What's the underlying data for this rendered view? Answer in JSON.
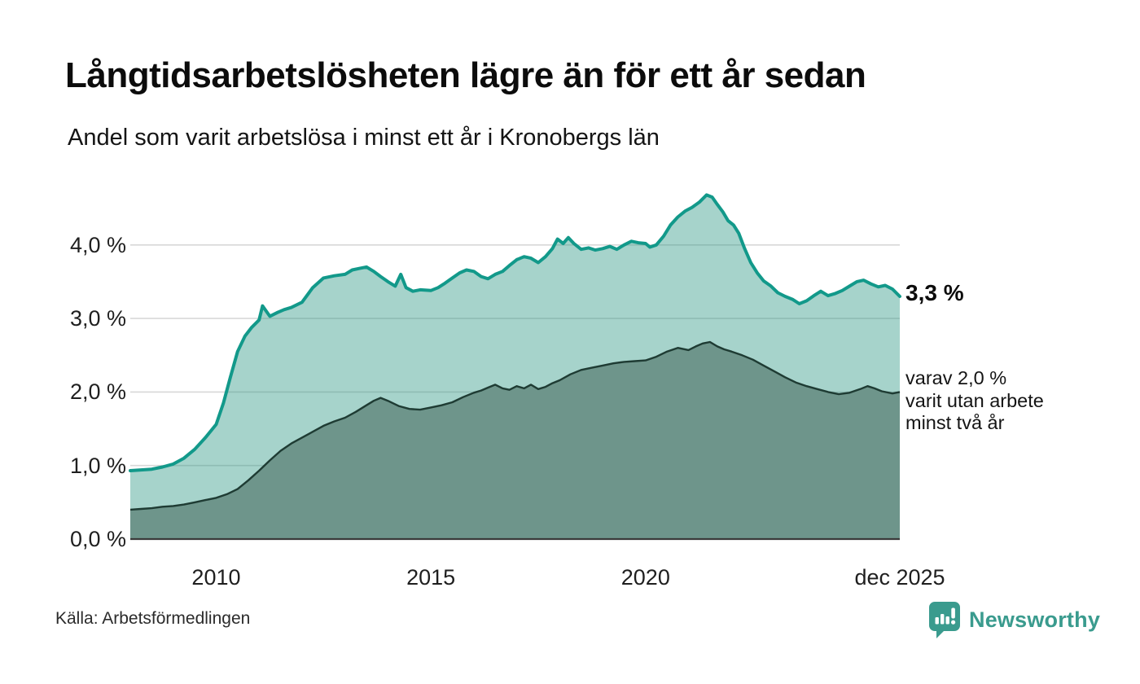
{
  "header": {
    "title": "Långtidsarbetslösheten lägre än för ett år sedan",
    "subtitle": "Andel som varit arbetslösa i minst ett år i Kronobergs län"
  },
  "chart_data": {
    "type": "area",
    "title": "Långtidsarbetslösheten lägre än för ett år sedan",
    "subtitle": "Andel som varit arbetslösa i minst ett år i Kronobergs län",
    "unit": "%",
    "x_range": [
      2008,
      2025.92
    ],
    "ylim": [
      0,
      4.85
    ],
    "grid": "horizontal",
    "legend_position": "right-edge-annotations",
    "x_axis": {
      "ticks": [
        {
          "label": "2010",
          "year": 2010
        },
        {
          "label": "2015",
          "year": 2015
        },
        {
          "label": "2020",
          "year": 2020
        },
        {
          "label": "dec 2025",
          "year": 2025.92
        }
      ]
    },
    "y_axis": {
      "tick_labels_top_to_bottom": [
        "4,0 %",
        "3,0 %",
        "2,0 %",
        "1,0 %",
        "0,0 %"
      ],
      "tick_values_top_to_bottom": [
        4,
        3,
        2,
        1,
        0
      ],
      "grid_values": [
        1,
        2,
        3,
        4
      ]
    },
    "series": [
      {
        "name": "Andel som varit arbetslösa i minst ett år",
        "end_value_label": "3,3 %",
        "latest_value": 3.3,
        "points": [
          [
            2008.0,
            0.93
          ],
          [
            2008.25,
            0.94
          ],
          [
            2008.5,
            0.95
          ],
          [
            2008.75,
            0.98
          ],
          [
            2009.0,
            1.02
          ],
          [
            2009.25,
            1.1
          ],
          [
            2009.5,
            1.22
          ],
          [
            2009.75,
            1.38
          ],
          [
            2010.0,
            1.56
          ],
          [
            2010.17,
            1.85
          ],
          [
            2010.33,
            2.2
          ],
          [
            2010.5,
            2.55
          ],
          [
            2010.67,
            2.76
          ],
          [
            2010.83,
            2.88
          ],
          [
            2011.0,
            2.98
          ],
          [
            2011.08,
            3.17
          ],
          [
            2011.25,
            3.03
          ],
          [
            2011.42,
            3.08
          ],
          [
            2011.58,
            3.12
          ],
          [
            2011.75,
            3.15
          ],
          [
            2012.0,
            3.22
          ],
          [
            2012.25,
            3.42
          ],
          [
            2012.5,
            3.55
          ],
          [
            2012.75,
            3.58
          ],
          [
            2013.0,
            3.6
          ],
          [
            2013.17,
            3.66
          ],
          [
            2013.33,
            3.68
          ],
          [
            2013.5,
            3.7
          ],
          [
            2013.67,
            3.64
          ],
          [
            2013.83,
            3.57
          ],
          [
            2014.0,
            3.5
          ],
          [
            2014.17,
            3.44
          ],
          [
            2014.3,
            3.6
          ],
          [
            2014.42,
            3.42
          ],
          [
            2014.58,
            3.37
          ],
          [
            2014.75,
            3.39
          ],
          [
            2015.0,
            3.38
          ],
          [
            2015.17,
            3.42
          ],
          [
            2015.33,
            3.48
          ],
          [
            2015.5,
            3.55
          ],
          [
            2015.67,
            3.62
          ],
          [
            2015.83,
            3.66
          ],
          [
            2016.0,
            3.64
          ],
          [
            2016.17,
            3.57
          ],
          [
            2016.33,
            3.54
          ],
          [
            2016.5,
            3.6
          ],
          [
            2016.67,
            3.64
          ],
          [
            2016.83,
            3.72
          ],
          [
            2017.0,
            3.8
          ],
          [
            2017.17,
            3.84
          ],
          [
            2017.33,
            3.82
          ],
          [
            2017.5,
            3.76
          ],
          [
            2017.67,
            3.84
          ],
          [
            2017.83,
            3.95
          ],
          [
            2017.95,
            4.08
          ],
          [
            2018.08,
            4.02
          ],
          [
            2018.2,
            4.1
          ],
          [
            2018.33,
            4.02
          ],
          [
            2018.5,
            3.94
          ],
          [
            2018.67,
            3.96
          ],
          [
            2018.83,
            3.93
          ],
          [
            2019.0,
            3.95
          ],
          [
            2019.17,
            3.98
          ],
          [
            2019.33,
            3.94
          ],
          [
            2019.5,
            4.0
          ],
          [
            2019.67,
            4.05
          ],
          [
            2019.83,
            4.03
          ],
          [
            2020.0,
            4.02
          ],
          [
            2020.1,
            3.97
          ],
          [
            2020.25,
            4.0
          ],
          [
            2020.42,
            4.12
          ],
          [
            2020.58,
            4.27
          ],
          [
            2020.75,
            4.38
          ],
          [
            2020.92,
            4.46
          ],
          [
            2021.08,
            4.51
          ],
          [
            2021.25,
            4.58
          ],
          [
            2021.42,
            4.68
          ],
          [
            2021.55,
            4.65
          ],
          [
            2021.67,
            4.55
          ],
          [
            2021.8,
            4.45
          ],
          [
            2021.92,
            4.33
          ],
          [
            2022.05,
            4.27
          ],
          [
            2022.17,
            4.16
          ],
          [
            2022.3,
            3.96
          ],
          [
            2022.45,
            3.76
          ],
          [
            2022.6,
            3.62
          ],
          [
            2022.75,
            3.51
          ],
          [
            2022.92,
            3.44
          ],
          [
            2023.08,
            3.35
          ],
          [
            2023.25,
            3.3
          ],
          [
            2023.42,
            3.26
          ],
          [
            2023.58,
            3.2
          ],
          [
            2023.75,
            3.24
          ],
          [
            2023.92,
            3.31
          ],
          [
            2024.08,
            3.37
          ],
          [
            2024.25,
            3.31
          ],
          [
            2024.42,
            3.34
          ],
          [
            2024.58,
            3.38
          ],
          [
            2024.75,
            3.44
          ],
          [
            2024.92,
            3.5
          ],
          [
            2025.08,
            3.52
          ],
          [
            2025.25,
            3.47
          ],
          [
            2025.42,
            3.43
          ],
          [
            2025.58,
            3.45
          ],
          [
            2025.75,
            3.4
          ],
          [
            2025.92,
            3.3
          ]
        ]
      },
      {
        "name": "varav varit utan arbete minst två år",
        "end_value_label": "varav 2,0 % varit utan arbete minst två år",
        "latest_value": 2.0,
        "points": [
          [
            2008.0,
            0.4
          ],
          [
            2008.25,
            0.41
          ],
          [
            2008.5,
            0.42
          ],
          [
            2008.75,
            0.44
          ],
          [
            2009.0,
            0.45
          ],
          [
            2009.25,
            0.47
          ],
          [
            2009.5,
            0.5
          ],
          [
            2009.75,
            0.53
          ],
          [
            2010.0,
            0.56
          ],
          [
            2010.25,
            0.61
          ],
          [
            2010.5,
            0.68
          ],
          [
            2010.75,
            0.8
          ],
          [
            2011.0,
            0.93
          ],
          [
            2011.25,
            1.07
          ],
          [
            2011.5,
            1.2
          ],
          [
            2011.75,
            1.3
          ],
          [
            2012.0,
            1.38
          ],
          [
            2012.25,
            1.46
          ],
          [
            2012.5,
            1.54
          ],
          [
            2012.75,
            1.6
          ],
          [
            2013.0,
            1.65
          ],
          [
            2013.25,
            1.73
          ],
          [
            2013.5,
            1.82
          ],
          [
            2013.67,
            1.88
          ],
          [
            2013.83,
            1.92
          ],
          [
            2014.0,
            1.88
          ],
          [
            2014.25,
            1.81
          ],
          [
            2014.5,
            1.77
          ],
          [
            2014.75,
            1.76
          ],
          [
            2015.0,
            1.79
          ],
          [
            2015.25,
            1.82
          ],
          [
            2015.5,
            1.86
          ],
          [
            2015.75,
            1.93
          ],
          [
            2016.0,
            1.99
          ],
          [
            2016.17,
            2.02
          ],
          [
            2016.33,
            2.06
          ],
          [
            2016.5,
            2.1
          ],
          [
            2016.67,
            2.05
          ],
          [
            2016.83,
            2.03
          ],
          [
            2017.0,
            2.08
          ],
          [
            2017.17,
            2.05
          ],
          [
            2017.33,
            2.1
          ],
          [
            2017.5,
            2.04
          ],
          [
            2017.67,
            2.07
          ],
          [
            2017.83,
            2.12
          ],
          [
            2018.0,
            2.16
          ],
          [
            2018.25,
            2.24
          ],
          [
            2018.5,
            2.3
          ],
          [
            2018.75,
            2.33
          ],
          [
            2019.0,
            2.36
          ],
          [
            2019.25,
            2.39
          ],
          [
            2019.5,
            2.41
          ],
          [
            2019.75,
            2.42
          ],
          [
            2020.0,
            2.43
          ],
          [
            2020.25,
            2.48
          ],
          [
            2020.5,
            2.55
          ],
          [
            2020.75,
            2.6
          ],
          [
            2021.0,
            2.57
          ],
          [
            2021.17,
            2.62
          ],
          [
            2021.33,
            2.66
          ],
          [
            2021.5,
            2.68
          ],
          [
            2021.67,
            2.62
          ],
          [
            2021.83,
            2.58
          ],
          [
            2022.0,
            2.55
          ],
          [
            2022.25,
            2.5
          ],
          [
            2022.5,
            2.44
          ],
          [
            2022.75,
            2.36
          ],
          [
            2023.0,
            2.28
          ],
          [
            2023.25,
            2.2
          ],
          [
            2023.5,
            2.13
          ],
          [
            2023.75,
            2.08
          ],
          [
            2024.0,
            2.04
          ],
          [
            2024.25,
            2.0
          ],
          [
            2024.5,
            1.97
          ],
          [
            2024.75,
            1.99
          ],
          [
            2025.0,
            2.04
          ],
          [
            2025.17,
            2.08
          ],
          [
            2025.33,
            2.05
          ],
          [
            2025.5,
            2.01
          ],
          [
            2025.75,
            1.98
          ],
          [
            2025.92,
            2.0
          ]
        ]
      }
    ]
  },
  "annotations": {
    "latest_total": "3,3 %",
    "secondary_lines": [
      "varav 2,0 %",
      "varit utan arbete",
      "minst två år"
    ]
  },
  "footer": {
    "source": "Källa: Arbetsförmedlingen",
    "brand": "Newsworthy"
  },
  "colors": {
    "line_teal": "#12998a",
    "area_light": "rgba(42,150,130,0.42)",
    "line_dark": "#1e3b33",
    "area_dark": "#6e958b",
    "gridline": "#d8d8d8",
    "baseline": "#3a3a3a",
    "brand_teal": "#3a9b8e"
  }
}
